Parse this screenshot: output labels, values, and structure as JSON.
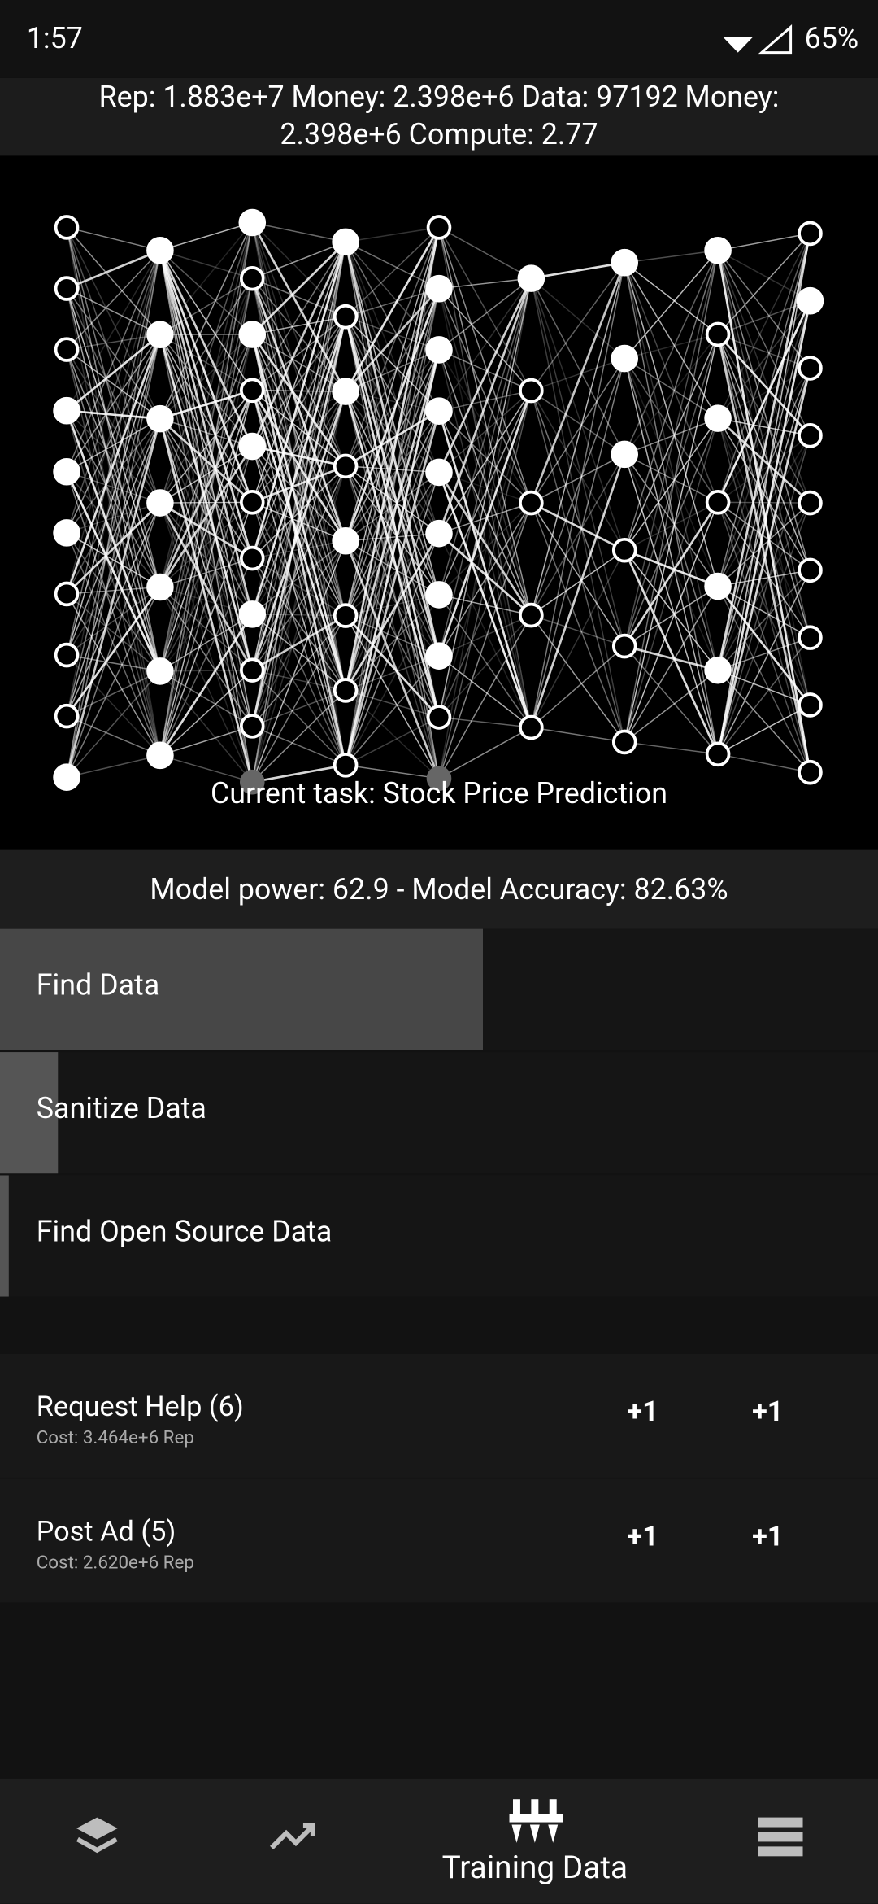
{
  "status_bar": {
    "time": "1:57",
    "battery": "65%"
  },
  "resources": {
    "line1": "Rep: 1.883e+7 Money: 2.398e+6 Data: 97192 Money:",
    "line2": "2.398e+6 Compute: 2.77"
  },
  "network": {
    "task": "Current task: Stock Price Prediction"
  },
  "model_status": "Model power: 62.9 - Model Accuracy: 82.63%",
  "actions": [
    {
      "label": "Find Data",
      "progress": 0.55
    },
    {
      "label": "Sanitize Data",
      "progress": 0.066
    },
    {
      "label": "Find Open Source Data",
      "progress": 0.01
    }
  ],
  "upgrades": [
    {
      "label": "Request Help (6)",
      "cost": "Cost: 3.464e+6 Rep",
      "buttons": [
        "+1",
        "+1"
      ]
    },
    {
      "label": "Post Ad (5)",
      "cost": "Cost: 2.620e+6 Rep",
      "buttons": [
        "+1",
        "+1"
      ]
    }
  ],
  "nav": {
    "active_label": "Training Data"
  }
}
